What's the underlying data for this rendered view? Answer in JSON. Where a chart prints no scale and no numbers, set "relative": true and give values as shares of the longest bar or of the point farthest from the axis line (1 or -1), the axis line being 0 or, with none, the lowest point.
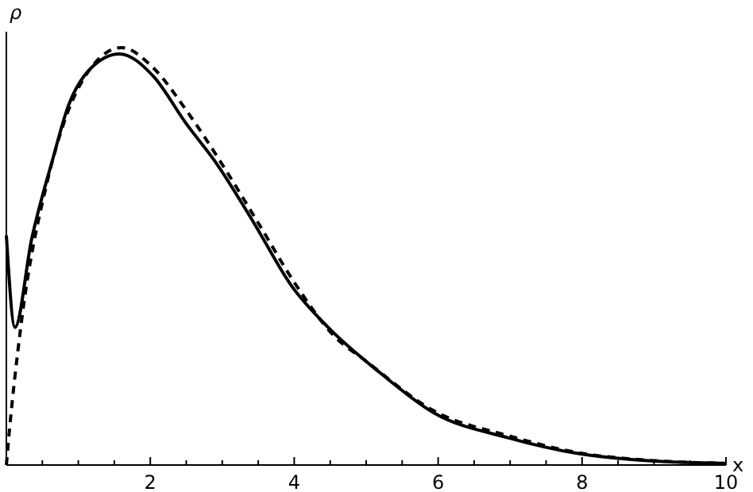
{
  "chart_data": {
    "type": "line",
    "xlabel": "x",
    "ylabel": "ρ",
    "relative": true,
    "xlim": [
      0,
      10
    ],
    "xticks": [
      {
        "value": 0.5,
        "label": null
      },
      {
        "value": 1,
        "label": null
      },
      {
        "value": 1.5,
        "label": null
      },
      2,
      {
        "value": 2.5,
        "label": null
      },
      {
        "value": 3,
        "label": null
      },
      {
        "value": 3.5,
        "label": null
      },
      4,
      {
        "value": 4.5,
        "label": null
      },
      {
        "value": 5,
        "label": null
      },
      {
        "value": 5.5,
        "label": null
      },
      6,
      {
        "value": 6.5,
        "label": null
      },
      {
        "value": 7,
        "label": null
      },
      {
        "value": 7.5,
        "label": null
      },
      8,
      {
        "value": 8.5,
        "label": null
      },
      {
        "value": 9,
        "label": null
      },
      {
        "value": 9.5,
        "label": null
      },
      10
    ],
    "series": [
      {
        "color": "#000000",
        "line_style": "solid",
        "x": [
          0,
          0.12,
          0.35,
          0.64,
          0.86,
          1.17,
          1.57,
          2.05,
          2.49,
          2.93,
          3.44,
          3.96,
          4.47,
          5.2,
          5.94,
          6.98,
          7.93,
          8.96,
          10
        ],
        "values": [
          0.55,
          0.33,
          0.54,
          0.73,
          0.86,
          0.95,
          0.985,
          0.93,
          0.82,
          0.72,
          0.58,
          0.43,
          0.33,
          0.22,
          0.125,
          0.065,
          0.028,
          0.01,
          0.004
        ]
      },
      {
        "color": "#000000",
        "line_style": "dashed",
        "x": [
          0,
          0.02,
          0.2,
          0.57,
          0.8,
          1.17,
          1.6,
          2.05,
          2.5,
          3.0,
          3.5,
          4.03,
          4.55,
          4.99,
          5.94,
          6.98,
          7.93,
          8.96,
          10
        ],
        "values": [
          0,
          0.04,
          0.33,
          0.68,
          0.82,
          0.95,
          1.0,
          0.95,
          0.85,
          0.72,
          0.58,
          0.43,
          0.31,
          0.25,
          0.13,
          0.07,
          0.03,
          0.011,
          0.004
        ]
      }
    ],
    "marker": "none",
    "grid": false
  }
}
